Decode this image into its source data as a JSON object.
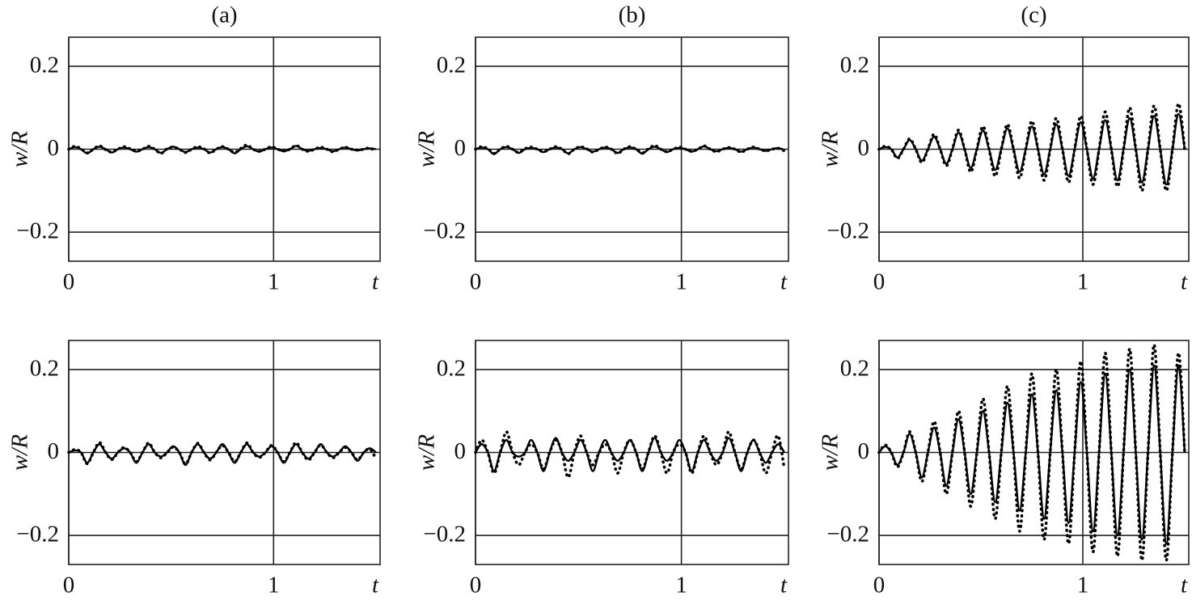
{
  "chart_data": [
    {
      "type": "line",
      "title": "(a)",
      "x_label": "t",
      "y_label": "w/R",
      "xlim": [
        0,
        1.52
      ],
      "ylim": [
        -0.27,
        0.27
      ],
      "xticks": [
        0,
        1
      ],
      "yticks": [
        {
          "value": -0.2,
          "label": "−0.2"
        },
        0,
        0.2
      ],
      "grid": true,
      "x": [
        0,
        0.03,
        0.06,
        0.09,
        0.12,
        0.15,
        0.18,
        0.21,
        0.24,
        0.27,
        0.3,
        0.33,
        0.36,
        0.39,
        0.42,
        0.45,
        0.48,
        0.51,
        0.54,
        0.57,
        0.6,
        0.63,
        0.66,
        0.69,
        0.72,
        0.75,
        0.78,
        0.81,
        0.84,
        0.87,
        0.9,
        0.93,
        0.96,
        0.99,
        1.02,
        1.05,
        1.08,
        1.11,
        1.14,
        1.17,
        1.2,
        1.23,
        1.26,
        1.29,
        1.32,
        1.35,
        1.38,
        1.41,
        1.44,
        1.47,
        1.5
      ],
      "series": [
        {
          "color": "#000000",
          "style": "solid",
          "values": [
            0,
            0.005,
            0,
            -0.01,
            0,
            0.006,
            0,
            -0.008,
            0,
            0.004,
            0,
            -0.006,
            0,
            0.005,
            0,
            -0.009,
            0,
            0.006,
            0,
            -0.007,
            0,
            0.004,
            0,
            -0.008,
            0,
            0.005,
            0,
            -0.01,
            0,
            0.007,
            0,
            -0.006,
            0,
            0.004,
            0,
            -0.005,
            0,
            0.008,
            0,
            -0.004,
            0,
            0.003,
            0,
            -0.005,
            0,
            0.004,
            0,
            -0.003,
            0,
            0.002,
            0
          ]
        },
        {
          "color": "#000000",
          "style": "dotted",
          "values": [
            0,
            0.007,
            0.001,
            -0.009,
            0,
            0.008,
            -0.001,
            -0.007,
            0,
            0.006,
            0.001,
            -0.005,
            0,
            0.007,
            0,
            -0.01,
            0.001,
            0.005,
            0,
            -0.008,
            0,
            0.006,
            0.001,
            -0.009,
            0,
            0.006,
            0,
            -0.008,
            0.002,
            0.01,
            0,
            -0.005,
            0,
            0.006,
            0,
            -0.004,
            0,
            0.009,
            0,
            -0.005,
            0,
            0.005,
            0,
            -0.006,
            0,
            0.005,
            0,
            -0.002,
            0,
            0.003,
            -0.006
          ]
        }
      ]
    },
    {
      "type": "line",
      "title": "(b)",
      "x_label": "t",
      "y_label": "w/R",
      "xlim": [
        0,
        1.52
      ],
      "ylim": [
        -0.27,
        0.27
      ],
      "xticks": [
        0,
        1
      ],
      "yticks": [
        {
          "value": -0.2,
          "label": "−0.2"
        },
        0,
        0.2
      ],
      "grid": true,
      "x": [
        0,
        0.03,
        0.06,
        0.09,
        0.12,
        0.15,
        0.18,
        0.21,
        0.24,
        0.27,
        0.3,
        0.33,
        0.36,
        0.39,
        0.42,
        0.45,
        0.48,
        0.51,
        0.54,
        0.57,
        0.6,
        0.63,
        0.66,
        0.69,
        0.72,
        0.75,
        0.78,
        0.81,
        0.84,
        0.87,
        0.9,
        0.93,
        0.96,
        0.99,
        1.02,
        1.05,
        1.08,
        1.11,
        1.14,
        1.17,
        1.2,
        1.23,
        1.26,
        1.29,
        1.32,
        1.35,
        1.38,
        1.41,
        1.44,
        1.47,
        1.5
      ],
      "series": [
        {
          "color": "#000000",
          "style": "solid",
          "values": [
            0,
            0.004,
            0,
            -0.012,
            0,
            0.005,
            0,
            -0.009,
            0,
            0.003,
            0,
            -0.007,
            0,
            0.004,
            0,
            -0.01,
            0,
            0.005,
            0,
            -0.006,
            0,
            0.004,
            0,
            -0.009,
            0,
            0.004,
            0,
            -0.011,
            0,
            0.006,
            0,
            -0.007,
            0,
            0.003,
            0,
            -0.006,
            0,
            0.007,
            0,
            -0.005,
            0,
            0.003,
            0,
            -0.006,
            0,
            0.004,
            0,
            -0.004,
            0,
            0.003,
            -0.002
          ]
        },
        {
          "color": "#000000",
          "style": "dotted",
          "values": [
            0,
            0.006,
            0.001,
            -0.01,
            0,
            0.007,
            0,
            -0.008,
            0.001,
            0.005,
            0,
            -0.006,
            0,
            0.006,
            0,
            -0.011,
            0,
            0.006,
            0.001,
            -0.007,
            0,
            0.005,
            0,
            -0.01,
            0,
            0.006,
            0,
            -0.009,
            0.001,
            0.009,
            0,
            -0.006,
            0,
            0.005,
            0,
            -0.005,
            0,
            0.008,
            0,
            -0.006,
            0,
            0.004,
            0,
            -0.007,
            0,
            0.005,
            0,
            -0.004,
            0,
            0.002,
            -0.004
          ]
        }
      ]
    },
    {
      "type": "line",
      "title": "(c)",
      "x_label": "t",
      "y_label": "w/R",
      "xlim": [
        0,
        1.52
      ],
      "ylim": [
        -0.27,
        0.27
      ],
      "xticks": [
        0,
        1
      ],
      "yticks": [
        {
          "value": -0.2,
          "label": "−0.2"
        },
        0,
        0.2
      ],
      "grid": true,
      "x": [
        0,
        0.03,
        0.06,
        0.09,
        0.12,
        0.15,
        0.18,
        0.21,
        0.24,
        0.27,
        0.3,
        0.33,
        0.36,
        0.39,
        0.42,
        0.45,
        0.48,
        0.51,
        0.54,
        0.57,
        0.6,
        0.63,
        0.66,
        0.69,
        0.72,
        0.75,
        0.78,
        0.81,
        0.84,
        0.87,
        0.9,
        0.93,
        0.96,
        0.99,
        1.02,
        1.05,
        1.08,
        1.11,
        1.14,
        1.17,
        1.2,
        1.23,
        1.26,
        1.29,
        1.32,
        1.35,
        1.38,
        1.41,
        1.44,
        1.47,
        1.5
      ],
      "series": [
        {
          "color": "#000000",
          "style": "solid",
          "values": [
            0,
            0.005,
            0,
            -0.02,
            0,
            0.022,
            0,
            -0.028,
            0,
            0.03,
            0,
            -0.035,
            0,
            0.04,
            0,
            -0.045,
            0,
            0.045,
            0,
            -0.05,
            0,
            0.05,
            0,
            -0.055,
            0,
            0.055,
            0,
            -0.06,
            0,
            0.06,
            0,
            -0.065,
            0,
            0.065,
            0,
            -0.07,
            0,
            0.07,
            0,
            -0.075,
            0,
            0.075,
            0,
            -0.08,
            0,
            0.08,
            0,
            -0.085,
            0,
            0.085,
            0
          ]
        },
        {
          "color": "#000000",
          "style": "dotted",
          "values": [
            0,
            0.007,
            0,
            -0.022,
            0,
            0.025,
            0,
            -0.032,
            0,
            0.036,
            0,
            -0.04,
            0,
            0.046,
            0,
            -0.055,
            0,
            0.055,
            0,
            -0.065,
            0,
            0.06,
            0,
            -0.07,
            0,
            0.068,
            0,
            -0.075,
            0,
            0.075,
            0,
            -0.08,
            0,
            0.08,
            0,
            -0.085,
            0,
            0.09,
            0,
            -0.09,
            0,
            0.1,
            0,
            -0.1,
            0,
            0.105,
            0,
            -0.1,
            0,
            0.11,
            0
          ]
        }
      ]
    },
    {
      "type": "line",
      "x_label": "t",
      "y_label": "w/R",
      "xlim": [
        0,
        1.52
      ],
      "ylim": [
        -0.27,
        0.27
      ],
      "xticks": [
        0,
        1
      ],
      "yticks": [
        {
          "value": -0.2,
          "label": "−0.2"
        },
        0,
        0.2
      ],
      "grid": true,
      "x": [
        0,
        0.03,
        0.06,
        0.09,
        0.12,
        0.15,
        0.18,
        0.21,
        0.24,
        0.27,
        0.3,
        0.33,
        0.36,
        0.39,
        0.42,
        0.45,
        0.48,
        0.51,
        0.54,
        0.57,
        0.6,
        0.63,
        0.66,
        0.69,
        0.72,
        0.75,
        0.78,
        0.81,
        0.84,
        0.87,
        0.9,
        0.93,
        0.96,
        0.99,
        1.02,
        1.05,
        1.08,
        1.11,
        1.14,
        1.17,
        1.2,
        1.23,
        1.26,
        1.29,
        1.32,
        1.35,
        1.38,
        1.41,
        1.44,
        1.47,
        1.5
      ],
      "series": [
        {
          "color": "#000000",
          "style": "solid",
          "values": [
            0,
            0.005,
            0,
            -0.025,
            0,
            0.02,
            0,
            -0.015,
            0,
            0.01,
            0,
            -0.025,
            0,
            0.02,
            0,
            -0.01,
            0,
            0.015,
            0,
            -0.03,
            0,
            0.02,
            0,
            -0.015,
            0,
            0.02,
            0,
            -0.025,
            0,
            0.02,
            0,
            -0.01,
            0,
            0.015,
            0,
            -0.025,
            0,
            0.02,
            0,
            -0.015,
            0,
            0.02,
            0,
            -0.01,
            0,
            0.015,
            0,
            -0.02,
            0,
            0.01,
            0
          ]
        },
        {
          "color": "#000000",
          "style": "dotted",
          "values": [
            0,
            0.007,
            0,
            -0.027,
            0,
            0.024,
            0,
            -0.017,
            0,
            0.012,
            0,
            -0.022,
            0,
            0.023,
            0,
            -0.013,
            0,
            0.013,
            0,
            -0.028,
            0,
            0.022,
            0,
            -0.018,
            0,
            0.017,
            0,
            -0.022,
            0,
            0.023,
            0,
            -0.012,
            0,
            0.017,
            0,
            -0.022,
            0,
            0.024,
            0,
            -0.018,
            0,
            0.018,
            0,
            -0.013,
            0,
            0.012,
            0,
            -0.018,
            0,
            0.008,
            -0.015
          ]
        }
      ]
    },
    {
      "type": "line",
      "x_label": "t",
      "y_label": "w/R",
      "xlim": [
        0,
        1.52
      ],
      "ylim": [
        -0.27,
        0.27
      ],
      "xticks": [
        0,
        1
      ],
      "yticks": [
        {
          "value": -0.2,
          "label": "−0.2"
        },
        0,
        0.2
      ],
      "grid": true,
      "x": [
        0,
        0.03,
        0.06,
        0.09,
        0.12,
        0.15,
        0.18,
        0.21,
        0.24,
        0.27,
        0.3,
        0.33,
        0.36,
        0.39,
        0.42,
        0.45,
        0.48,
        0.51,
        0.54,
        0.57,
        0.6,
        0.63,
        0.66,
        0.69,
        0.72,
        0.75,
        0.78,
        0.81,
        0.84,
        0.87,
        0.9,
        0.93,
        0.96,
        0.99,
        1.02,
        1.05,
        1.08,
        1.11,
        1.14,
        1.17,
        1.2,
        1.23,
        1.26,
        1.29,
        1.32,
        1.35,
        1.38,
        1.41,
        1.44,
        1.47,
        1.5
      ],
      "series": [
        {
          "color": "#000000",
          "style": "solid",
          "values": [
            0,
            0.02,
            0,
            -0.045,
            0,
            0.03,
            0,
            -0.01,
            0,
            0.03,
            0,
            -0.045,
            0,
            0.035,
            0,
            -0.02,
            0,
            0.03,
            0,
            -0.045,
            0,
            0.03,
            0,
            -0.02,
            0,
            0.03,
            0,
            -0.045,
            0,
            0.035,
            0,
            -0.02,
            0,
            0.03,
            0,
            -0.045,
            0,
            0.03,
            0,
            -0.02,
            0,
            0.035,
            0,
            -0.045,
            0,
            0.03,
            0,
            -0.025,
            0,
            0.02,
            0
          ]
        },
        {
          "color": "#000000",
          "style": "dotted",
          "values": [
            0,
            0.03,
            0,
            -0.05,
            0,
            0.05,
            0,
            -0.03,
            0,
            0.02,
            0,
            -0.04,
            0,
            0.03,
            0,
            -0.06,
            0,
            0.04,
            0,
            -0.03,
            0,
            0.02,
            0,
            -0.05,
            0,
            0.03,
            0,
            -0.04,
            0,
            0.04,
            0,
            -0.05,
            0,
            0.02,
            0,
            -0.05,
            0,
            0.04,
            0,
            -0.03,
            0,
            0.05,
            0,
            -0.04,
            0,
            0.03,
            0,
            -0.05,
            0,
            0.04,
            -0.04
          ]
        }
      ]
    },
    {
      "type": "line",
      "x_label": "t",
      "y_label": "w/R",
      "xlim": [
        0,
        1.52
      ],
      "ylim": [
        -0.27,
        0.27
      ],
      "xticks": [
        0,
        1
      ],
      "yticks": [
        {
          "value": -0.2,
          "label": "−0.2"
        },
        0,
        0.2
      ],
      "grid": true,
      "x": [
        0,
        0.03,
        0.06,
        0.09,
        0.12,
        0.15,
        0.18,
        0.21,
        0.24,
        0.27,
        0.3,
        0.33,
        0.36,
        0.39,
        0.42,
        0.45,
        0.48,
        0.51,
        0.54,
        0.57,
        0.6,
        0.63,
        0.66,
        0.69,
        0.72,
        0.75,
        0.78,
        0.81,
        0.84,
        0.87,
        0.9,
        0.93,
        0.96,
        0.99,
        1.02,
        1.05,
        1.08,
        1.11,
        1.14,
        1.17,
        1.2,
        1.23,
        1.26,
        1.29,
        1.32,
        1.35,
        1.38,
        1.41,
        1.44,
        1.47,
        1.5
      ],
      "series": [
        {
          "color": "#000000",
          "style": "solid",
          "values": [
            0,
            0.015,
            0,
            -0.03,
            0,
            0.045,
            0,
            -0.06,
            0,
            0.06,
            0,
            -0.08,
            0,
            0.08,
            0,
            -0.1,
            0,
            0.1,
            0,
            -0.12,
            0,
            0.12,
            0,
            -0.14,
            0,
            0.14,
            0,
            -0.16,
            0,
            0.15,
            0,
            -0.17,
            0,
            0.17,
            0,
            -0.19,
            0,
            0.19,
            0,
            -0.2,
            0,
            0.2,
            0,
            -0.21,
            0,
            0.21,
            0,
            -0.22,
            0,
            0.21,
            0
          ]
        },
        {
          "color": "#000000",
          "style": "dotted",
          "values": [
            0,
            0.018,
            0,
            -0.035,
            0,
            0.05,
            0,
            -0.07,
            0,
            0.075,
            0,
            -0.1,
            0,
            0.1,
            0,
            -0.13,
            0,
            0.13,
            0,
            -0.16,
            0,
            0.16,
            0,
            -0.19,
            0,
            0.19,
            0,
            -0.21,
            0,
            0.2,
            0,
            -0.22,
            0,
            0.22,
            0,
            -0.24,
            0,
            0.24,
            0,
            -0.25,
            0,
            0.25,
            0,
            -0.26,
            0,
            0.26,
            0,
            -0.26,
            0,
            0.24,
            0
          ]
        }
      ]
    }
  ]
}
